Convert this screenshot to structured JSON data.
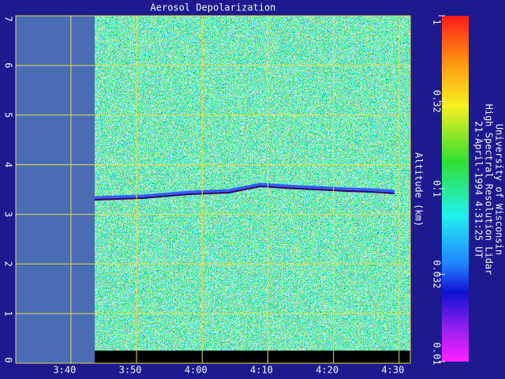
{
  "chart_data": {
    "type": "heatmap",
    "title": "Aerosol Depolarization",
    "y_label": "Altitude (km)",
    "xlim": [
      211.6,
      271.7
    ],
    "xticks": [
      {
        "value": 220,
        "label": "3:40"
      },
      {
        "value": 230,
        "label": "3:50"
      },
      {
        "value": 240,
        "label": "4:00"
      },
      {
        "value": 250,
        "label": "4:10"
      },
      {
        "value": 260,
        "label": "4:20"
      },
      {
        "value": 270,
        "label": "4:30"
      }
    ],
    "ylim": [
      0,
      7
    ],
    "yticks": [
      0,
      1,
      2,
      3,
      4,
      5,
      6,
      7
    ],
    "grid": true,
    "grid_color": "#e6dc48",
    "colorbar": {
      "scale": "log",
      "lim": [
        0.01,
        1
      ],
      "ticks": [
        1,
        0.32,
        0.1,
        0.032,
        0.01
      ]
    },
    "annotations": [
      "University of Wisconsin",
      "High Spectral Resolution Lidar",
      "21-April-1994  4:31:25 UT"
    ]
  }
}
